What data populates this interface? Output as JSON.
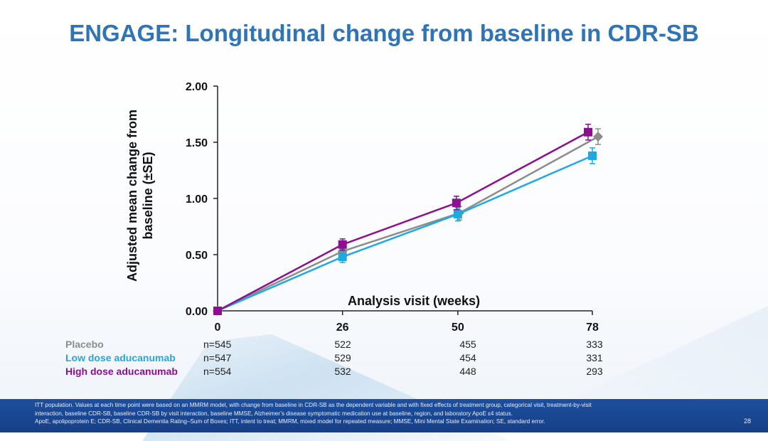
{
  "title": "ENGAGE: Longitudinal change from baseline in CDR-SB",
  "chart_data": {
    "type": "line",
    "title": "",
    "xlabel": "Analysis visit (weeks)",
    "ylabel": "Adjusted mean change from baseline (±SE)",
    "ylabel_lines": [
      "Adjusted mean change from",
      "baseline (±SE)"
    ],
    "x": [
      0,
      26,
      50,
      78
    ],
    "x_tick_labels": [
      "0",
      "26",
      "50",
      "78"
    ],
    "ylim": [
      0,
      2.0
    ],
    "y_ticks": [
      0,
      0.5,
      1.0,
      1.5,
      2.0
    ],
    "y_tick_labels": [
      "0.00",
      "0.50",
      "1.00",
      "1.50",
      "2.00"
    ],
    "grid": false,
    "series": [
      {
        "name": "Placebo",
        "color": "#8c8c8c",
        "marker": "diamond",
        "values": [
          0,
          0.53,
          0.87,
          1.55
        ],
        "se": [
          0,
          0.05,
          0.06,
          0.07
        ]
      },
      {
        "name": "Low dose aducanumab",
        "color": "#1fa9e1",
        "marker": "square",
        "values": [
          0,
          0.48,
          0.86,
          1.38
        ],
        "se": [
          0,
          0.05,
          0.06,
          0.07
        ]
      },
      {
        "name": "High dose aducanumab",
        "color": "#8b0f8f",
        "marker": "square",
        "values": [
          0,
          0.59,
          0.96,
          1.59
        ],
        "se": [
          0,
          0.05,
          0.06,
          0.07
        ]
      }
    ]
  },
  "n_table": {
    "rows": [
      {
        "label": "Placebo",
        "color": "#8c8c8c",
        "counts": [
          "n=545",
          "522",
          "455",
          "333"
        ]
      },
      {
        "label": "Low dose aducanumab",
        "color": "#23a8d8",
        "counts": [
          "n=547",
          "529",
          "454",
          "331"
        ]
      },
      {
        "label": "High dose aducanumab",
        "color": "#8b0f8f",
        "counts": [
          "n=554",
          "532",
          "448",
          "293"
        ]
      }
    ]
  },
  "footer": {
    "line1": "ITT population. Values at each time point were based on an MMRM model, with change from baseline in CDR-SB as the dependent variable and with fixed effects of treatment group, categorical visit, treatment-by-visit",
    "line2": "interaction, baseline CDR-SB, baseline CDR-SB by visit interaction, baseline MMSE, Alzheimer’s disease symptomatic medication use at baseline, region, and laboratory ApoE ε4 status.",
    "line3": "ApoE, apolipoprotein E; CDR-SB, Clinical Dementia Rating–Sum of Boxes; ITT, intent to treat; MMRM, mixed model for repeated measure; MMSE, Mini Mental State Examination; SE, standard error.",
    "page_number": "28"
  }
}
